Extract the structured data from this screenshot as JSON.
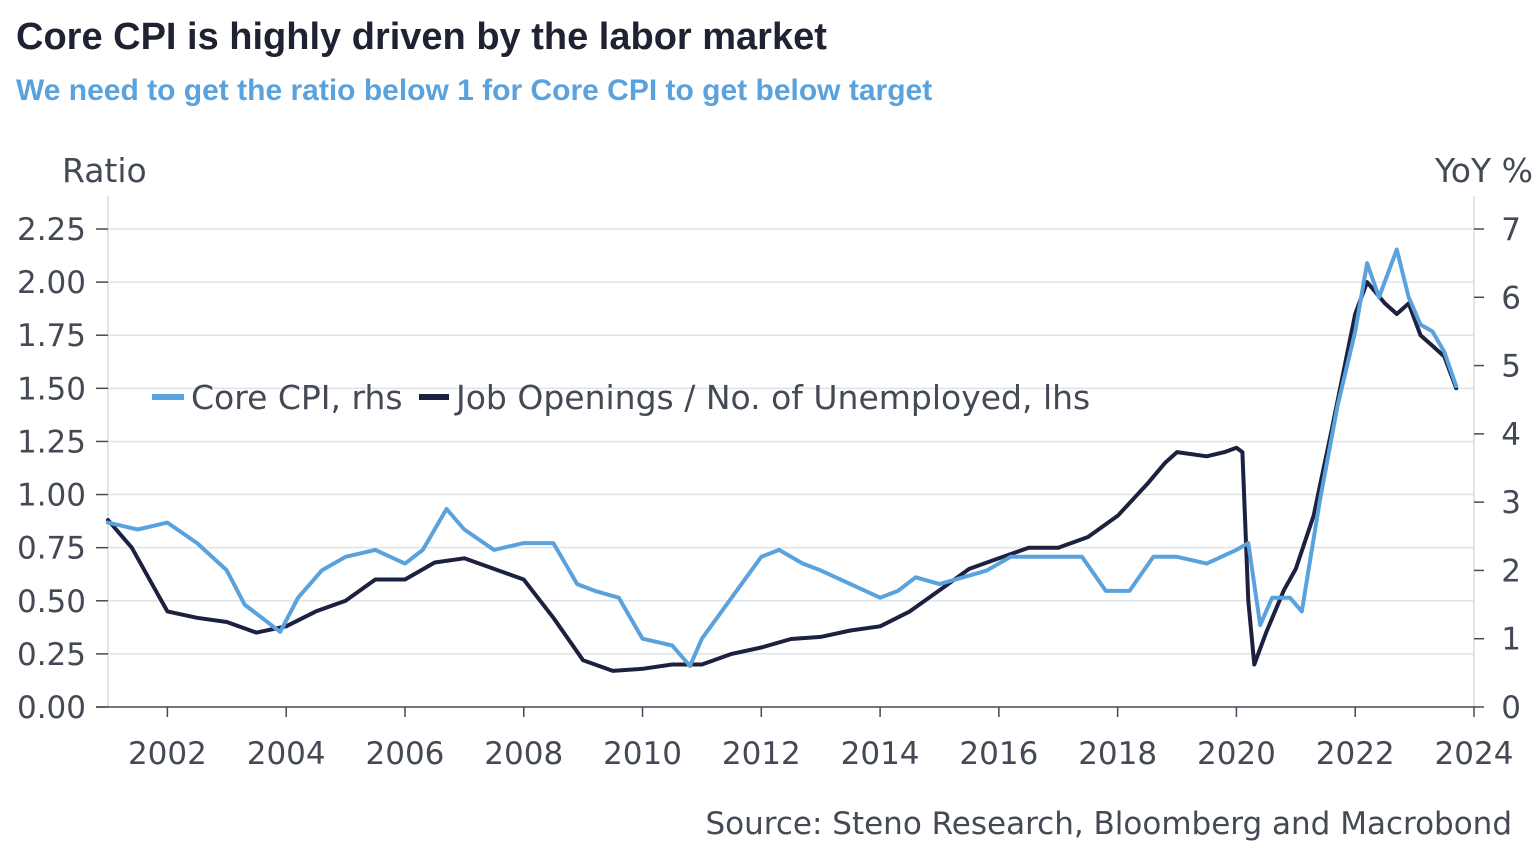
{
  "chart_data": {
    "type": "line",
    "title": "Core CPI is highly driven by the labor market",
    "subtitle": "We need to get the ratio below 1 for Core CPI to get below target",
    "ylabel_left": "Ratio",
    "ylabel_right": "YoY %",
    "source": "Source: Steno Research, Bloomberg and Macrobond",
    "colors": {
      "cpi": "#5aa2dd",
      "jolts": "#1c2140",
      "title": "#1f2233",
      "subtitle": "#5aa2dd"
    },
    "xlim": [
      2001.0,
      2024.0
    ],
    "ylim_left": [
      0,
      2.25
    ],
    "ylim_right": [
      0,
      7
    ],
    "x_ticks": [
      2002,
      2004,
      2006,
      2008,
      2010,
      2012,
      2014,
      2016,
      2018,
      2020,
      2022,
      2024
    ],
    "x_tick_labels": [
      "2002",
      "2004",
      "2006",
      "2008",
      "2010",
      "2012",
      "2014",
      "2016",
      "2018",
      "2020",
      "2022",
      "2024"
    ],
    "y_left_ticks": [
      0,
      0.25,
      0.5,
      0.75,
      1.0,
      1.25,
      1.5,
      1.75,
      2.0,
      2.25
    ],
    "y_left_tick_labels": [
      "0.00",
      "0.25",
      "0.50",
      "0.75",
      "1.00",
      "1.25",
      "1.50",
      "1.75",
      "2.00",
      "2.25"
    ],
    "y_right_ticks": [
      0,
      1,
      2,
      3,
      4,
      5,
      6,
      7
    ],
    "y_right_tick_labels": [
      "0",
      "1",
      "2",
      "3",
      "4",
      "5",
      "6",
      "7"
    ],
    "legend": [
      {
        "label": "Core CPI, rhs",
        "color": "#5aa2dd"
      },
      {
        "label": "Job Openings / No. of Unemployed, lhs",
        "color": "#1c2140"
      }
    ],
    "series": [
      {
        "name": "Core CPI, rhs",
        "axis": "right",
        "x": [
          2001.0,
          2001.5,
          2002.0,
          2002.5,
          2003.0,
          2003.3,
          2003.6,
          2003.9,
          2004.2,
          2004.6,
          2005.0,
          2005.5,
          2006.0,
          2006.3,
          2006.7,
          2007.0,
          2007.5,
          2008.0,
          2008.5,
          2008.9,
          2009.2,
          2009.6,
          2010.0,
          2010.5,
          2010.8,
          2011.0,
          2011.5,
          2012.0,
          2012.3,
          2012.7,
          2013.0,
          2013.5,
          2014.0,
          2014.3,
          2014.6,
          2015.0,
          2015.4,
          2015.8,
          2016.2,
          2016.6,
          2017.0,
          2017.4,
          2017.8,
          2018.2,
          2018.6,
          2019.0,
          2019.5,
          2020.0,
          2020.2,
          2020.4,
          2020.6,
          2020.9,
          2021.1,
          2021.4,
          2021.7,
          2022.0,
          2022.2,
          2022.4,
          2022.7,
          2022.9,
          2023.1,
          2023.3,
          2023.5,
          2023.7
        ],
        "values": [
          2.7,
          2.6,
          2.7,
          2.4,
          2.0,
          1.5,
          1.3,
          1.1,
          1.6,
          2.0,
          2.2,
          2.3,
          2.1,
          2.3,
          2.9,
          2.6,
          2.3,
          2.4,
          2.4,
          1.8,
          1.7,
          1.6,
          1.0,
          0.9,
          0.6,
          1.0,
          1.6,
          2.2,
          2.3,
          2.1,
          2.0,
          1.8,
          1.6,
          1.7,
          1.9,
          1.8,
          1.9,
          2.0,
          2.2,
          2.2,
          2.2,
          2.2,
          1.7,
          1.7,
          2.2,
          2.2,
          2.1,
          2.3,
          2.4,
          1.2,
          1.6,
          1.6,
          1.4,
          3.0,
          4.4,
          5.5,
          6.5,
          6.0,
          6.7,
          6.0,
          5.6,
          5.5,
          5.2,
          4.7
        ]
      },
      {
        "name": "Job Openings / No. of Unemployed, lhs",
        "axis": "left",
        "x": [
          2001.0,
          2001.4,
          2001.8,
          2002.0,
          2002.5,
          2003.0,
          2003.5,
          2004.0,
          2004.5,
          2005.0,
          2005.5,
          2006.0,
          2006.5,
          2007.0,
          2007.5,
          2008.0,
          2008.5,
          2009.0,
          2009.5,
          2010.0,
          2010.5,
          2011.0,
          2011.5,
          2012.0,
          2012.5,
          2013.0,
          2013.5,
          2014.0,
          2014.5,
          2015.0,
          2015.5,
          2016.0,
          2016.5,
          2017.0,
          2017.5,
          2018.0,
          2018.5,
          2018.8,
          2019.0,
          2019.5,
          2019.8,
          2020.0,
          2020.1,
          2020.2,
          2020.3,
          2020.5,
          2020.8,
          2021.0,
          2021.3,
          2021.6,
          2022.0,
          2022.2,
          2022.5,
          2022.7,
          2022.9,
          2023.1,
          2023.3,
          2023.5,
          2023.7
        ],
        "values": [
          0.88,
          0.75,
          0.55,
          0.45,
          0.42,
          0.4,
          0.35,
          0.38,
          0.45,
          0.5,
          0.6,
          0.6,
          0.68,
          0.7,
          0.65,
          0.6,
          0.42,
          0.22,
          0.17,
          0.18,
          0.2,
          0.2,
          0.25,
          0.28,
          0.32,
          0.33,
          0.36,
          0.38,
          0.45,
          0.55,
          0.65,
          0.7,
          0.75,
          0.75,
          0.8,
          0.9,
          1.05,
          1.15,
          1.2,
          1.18,
          1.2,
          1.22,
          1.2,
          0.5,
          0.2,
          0.35,
          0.55,
          0.65,
          0.9,
          1.3,
          1.85,
          2.0,
          1.9,
          1.85,
          1.9,
          1.75,
          1.7,
          1.65,
          1.5
        ]
      }
    ]
  }
}
